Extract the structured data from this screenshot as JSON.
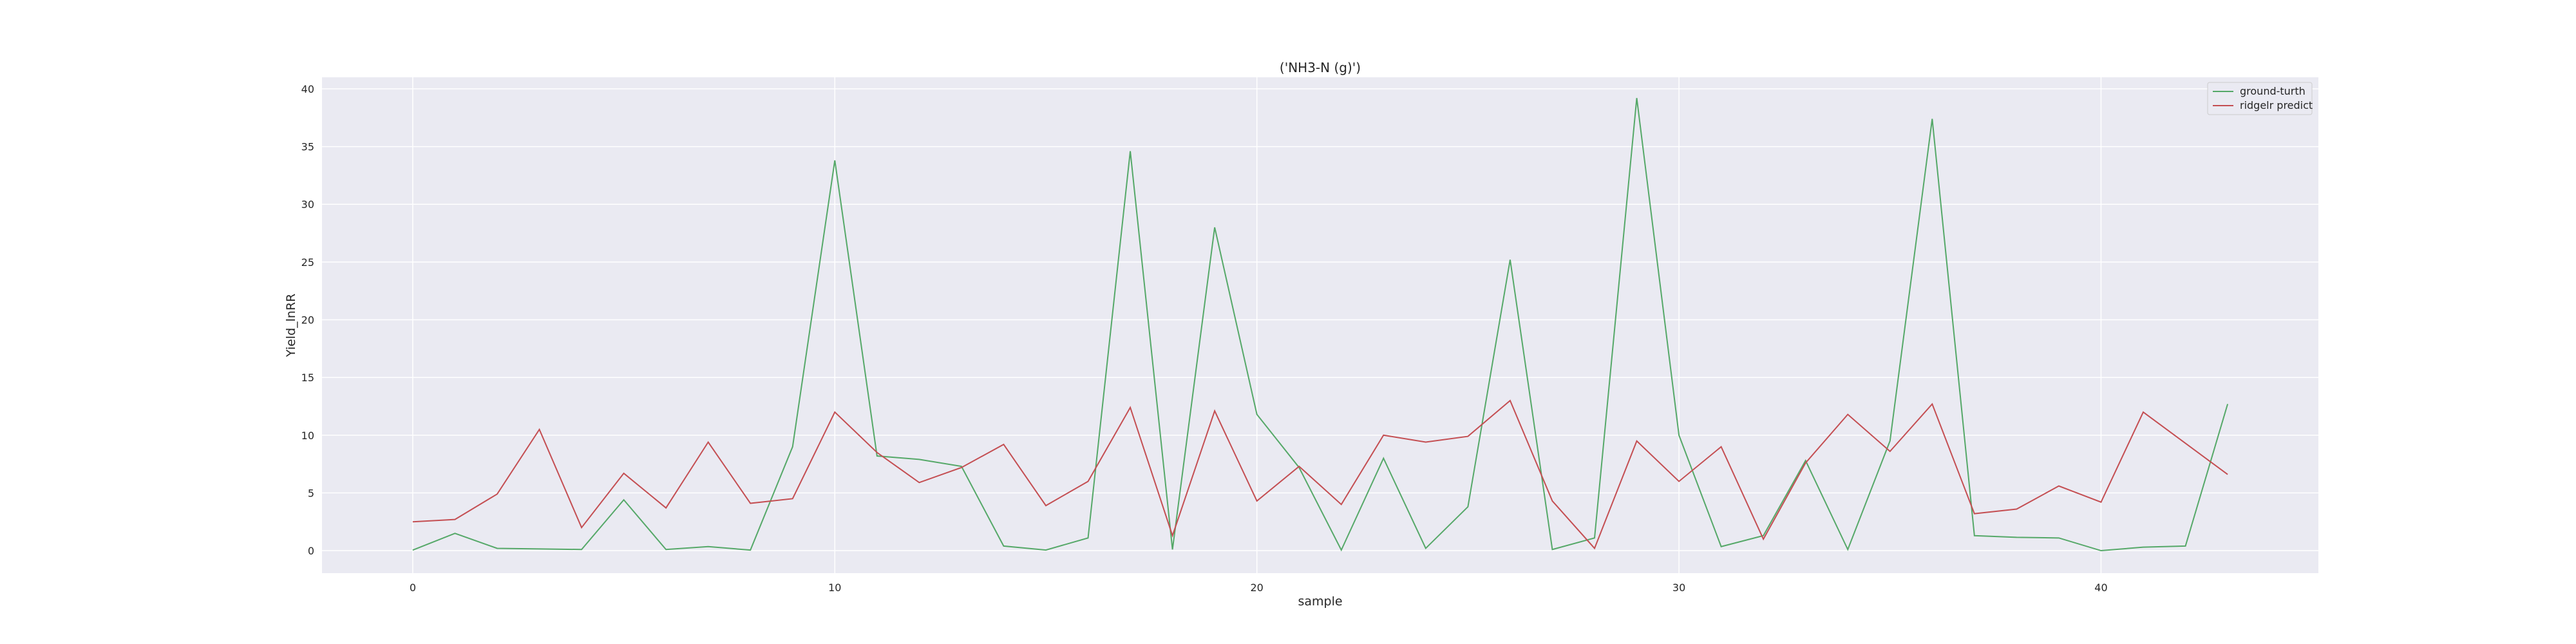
{
  "chart_data": {
    "type": "line",
    "title": "('NH3-N (g)')",
    "xlabel": "sample",
    "ylabel": "Yield_lnRR",
    "xlim": [
      -2.15,
      45.15
    ],
    "ylim": [
      -1.95,
      41.0
    ],
    "xticks": [
      0,
      10,
      20,
      30,
      40
    ],
    "yticks": [
      0,
      5,
      10,
      15,
      20,
      25,
      30,
      35,
      40
    ],
    "grid": true,
    "legend_position": "top-right",
    "x": [
      0,
      1,
      2,
      3,
      4,
      5,
      6,
      7,
      8,
      9,
      10,
      11,
      12,
      13,
      14,
      15,
      16,
      17,
      18,
      19,
      20,
      21,
      22,
      23,
      24,
      25,
      26,
      27,
      28,
      29,
      30,
      31,
      32,
      33,
      34,
      35,
      36,
      37,
      38,
      39,
      40,
      41,
      42,
      43
    ],
    "series": [
      {
        "name": "ground-turth",
        "color": "#55a868",
        "values": [
          0.05,
          1.5,
          0.2,
          0.15,
          0.1,
          4.4,
          0.1,
          0.35,
          0.05,
          9.0,
          33.8,
          8.2,
          7.9,
          7.3,
          0.4,
          0.05,
          1.1,
          34.6,
          0.1,
          28.0,
          11.8,
          7.2,
          0.05,
          8.0,
          0.2,
          3.8,
          25.2,
          0.1,
          1.1,
          39.2,
          10.0,
          0.35,
          1.3,
          7.8,
          0.1,
          9.5,
          37.4,
          1.3,
          1.15,
          1.1,
          0.0,
          0.3,
          0.4,
          12.7
        ]
      },
      {
        "name": "ridgelr predict",
        "color": "#c44e52",
        "values": [
          2.5,
          2.7,
          4.9,
          10.5,
          2.0,
          6.7,
          3.7,
          9.4,
          4.1,
          4.5,
          12.0,
          8.5,
          5.9,
          7.2,
          9.2,
          3.9,
          6.0,
          12.4,
          1.3,
          12.1,
          4.3,
          7.3,
          4.0,
          10.0,
          9.4,
          9.9,
          13.0,
          4.3,
          0.2,
          9.5,
          6.0,
          9.0,
          1.0,
          7.6,
          11.8,
          8.6,
          12.7,
          3.2,
          3.6,
          5.6,
          4.2,
          12.0,
          9.3,
          6.6
        ]
      }
    ]
  }
}
